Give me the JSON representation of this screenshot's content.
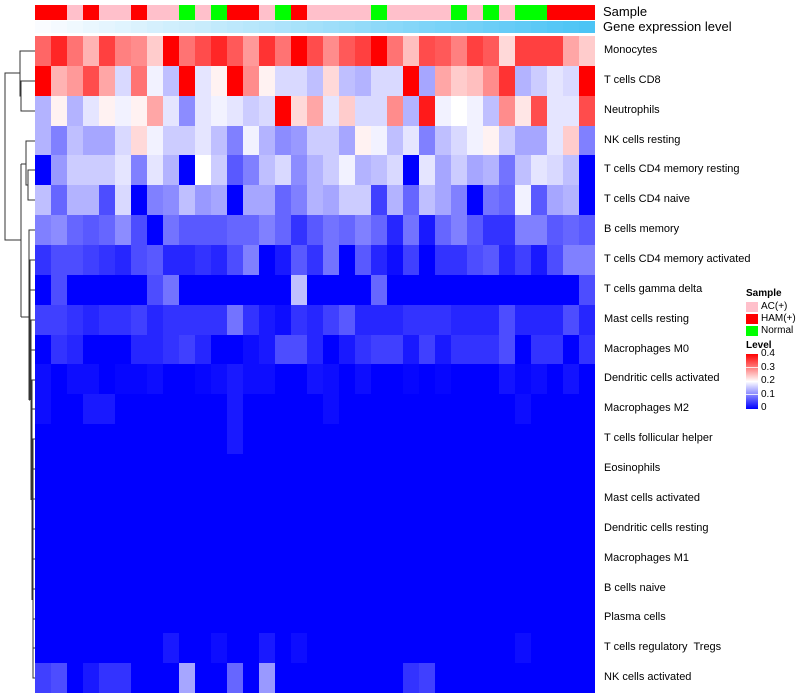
{
  "chart_data": {
    "type": "heatmap",
    "annotation_labels": {
      "sample": "Sample",
      "gene": "Gene expression level"
    },
    "samples": [
      "HAM(+)",
      "HAM(+)",
      "AC(+)",
      "HAM(+)",
      "AC(+)",
      "AC(+)",
      "HAM(+)",
      "AC(+)",
      "AC(+)",
      "Normal",
      "AC(+)",
      "Normal",
      "HAM(+)",
      "HAM(+)",
      "AC(+)",
      "Normal",
      "HAM(+)",
      "AC(+)",
      "AC(+)",
      "AC(+)",
      "AC(+)",
      "Normal",
      "AC(+)",
      "AC(+)",
      "AC(+)",
      "AC(+)",
      "Normal",
      "AC(+)",
      "Normal",
      "AC(+)",
      "Normal",
      "Normal",
      "HAM(+)",
      "HAM(+)",
      "HAM(+)"
    ],
    "gene_expression_level": [
      0.0,
      0.03,
      0.06,
      0.09,
      0.12,
      0.15,
      0.18,
      0.21,
      0.24,
      0.26,
      0.29,
      0.32,
      0.35,
      0.38,
      0.41,
      0.44,
      0.47,
      0.5,
      0.53,
      0.56,
      0.59,
      0.62,
      0.65,
      0.68,
      0.71,
      0.74,
      0.76,
      0.79,
      0.82,
      0.85,
      0.88,
      0.91,
      0.94,
      0.97,
      1.0
    ],
    "rows": [
      "Monocytes",
      "T cells CD8",
      "Neutrophils",
      "NK cells resting",
      "T cells CD4 memory resting",
      "T cells CD4 naive",
      "B cells memory",
      "T cells CD4 memory activated",
      "T cells gamma delta",
      "Mast cells resting",
      "Macrophages M0",
      "Dendritic cells activated",
      "Macrophages M2",
      "T cells follicular helper",
      "Eosinophils",
      "Mast cells activated",
      "Dendritic cells resting",
      "Macrophages M1",
      "B cells naive",
      "Plasma cells",
      "T cells regulatory  Tregs",
      "NK cells activated"
    ],
    "values": [
      [
        0.32,
        0.37,
        0.31,
        0.26,
        0.35,
        0.3,
        0.29,
        0.24,
        0.4,
        0.31,
        0.34,
        0.37,
        0.33,
        0.28,
        0.36,
        0.31,
        0.4,
        0.34,
        0.29,
        0.33,
        0.35,
        0.4,
        0.31,
        0.25,
        0.34,
        0.33,
        0.3,
        0.35,
        0.33,
        0.23,
        0.35,
        0.35,
        0.35,
        0.27,
        0.24
      ],
      [
        0.4,
        0.26,
        0.28,
        0.34,
        0.27,
        0.17,
        0.31,
        0.19,
        0.15,
        0.4,
        0.18,
        0.21,
        0.4,
        0.29,
        0.21,
        0.17,
        0.17,
        0.15,
        0.23,
        0.15,
        0.14,
        0.17,
        0.17,
        0.4,
        0.13,
        0.27,
        0.24,
        0.25,
        0.29,
        0.36,
        0.14,
        0.16,
        0.18,
        0.17,
        0.4
      ],
      [
        0.14,
        0.21,
        0.14,
        0.18,
        0.21,
        0.19,
        0.21,
        0.27,
        0.18,
        0.11,
        0.18,
        0.19,
        0.18,
        0.16,
        0.17,
        0.4,
        0.23,
        0.27,
        0.18,
        0.24,
        0.17,
        0.17,
        0.29,
        0.14,
        0.38,
        0.19,
        0.2,
        0.19,
        0.15,
        0.29,
        0.22,
        0.34,
        0.18,
        0.18,
        0.34
      ],
      [
        0.14,
        0.1,
        0.15,
        0.13,
        0.13,
        0.17,
        0.23,
        0.19,
        0.16,
        0.16,
        0.18,
        0.15,
        0.1,
        0.19,
        0.14,
        0.11,
        0.12,
        0.16,
        0.16,
        0.13,
        0.21,
        0.19,
        0.15,
        0.18,
        0.1,
        0.15,
        0.17,
        0.19,
        0.21,
        0.16,
        0.13,
        0.13,
        0.18,
        0.24,
        0.1
      ],
      [
        0.0,
        0.12,
        0.16,
        0.16,
        0.16,
        0.18,
        0.1,
        0.18,
        0.14,
        0.0,
        0.2,
        0.16,
        0.07,
        0.1,
        0.15,
        0.17,
        0.11,
        0.14,
        0.16,
        0.19,
        0.14,
        0.15,
        0.17,
        0.0,
        0.18,
        0.13,
        0.16,
        0.13,
        0.14,
        0.09,
        0.15,
        0.18,
        0.17,
        0.15,
        0.0
      ],
      [
        0.15,
        0.08,
        0.14,
        0.14,
        0.06,
        0.17,
        0.0,
        0.1,
        0.11,
        0.15,
        0.12,
        0.13,
        0.0,
        0.13,
        0.13,
        0.08,
        0.1,
        0.14,
        0.13,
        0.16,
        0.16,
        0.05,
        0.14,
        0.08,
        0.15,
        0.13,
        0.1,
        0.0,
        0.09,
        0.08,
        0.19,
        0.07,
        0.13,
        0.14,
        0.0
      ],
      [
        0.1,
        0.11,
        0.08,
        0.07,
        0.08,
        0.11,
        0.06,
        0.0,
        0.09,
        0.07,
        0.07,
        0.07,
        0.08,
        0.08,
        0.1,
        0.08,
        0.04,
        0.07,
        0.09,
        0.08,
        0.1,
        0.08,
        0.03,
        0.09,
        0.02,
        0.08,
        0.1,
        0.07,
        0.04,
        0.04,
        0.1,
        0.1,
        0.07,
        0.08,
        0.07
      ],
      [
        0.04,
        0.06,
        0.06,
        0.05,
        0.04,
        0.03,
        0.06,
        0.07,
        0.03,
        0.03,
        0.04,
        0.03,
        0.06,
        0.1,
        0.0,
        0.02,
        0.07,
        0.04,
        0.09,
        0.0,
        0.07,
        0.03,
        0.01,
        0.05,
        0.0,
        0.04,
        0.04,
        0.06,
        0.07,
        0.03,
        0.05,
        0.02,
        0.06,
        0.1,
        0.1
      ],
      [
        0.0,
        0.06,
        0.0,
        0.0,
        0.0,
        0.0,
        0.0,
        0.06,
        0.09,
        0.0,
        0.0,
        0.0,
        0.0,
        0.0,
        0.0,
        0.0,
        0.15,
        0.0,
        0.0,
        0.0,
        0.0,
        0.08,
        0.0,
        0.0,
        0.0,
        0.0,
        0.0,
        0.0,
        0.0,
        0.0,
        0.0,
        0.0,
        0.0,
        0.0,
        0.06
      ],
      [
        0.05,
        0.05,
        0.04,
        0.03,
        0.04,
        0.04,
        0.05,
        0.03,
        0.04,
        0.04,
        0.04,
        0.04,
        0.09,
        0.04,
        0.02,
        0.01,
        0.04,
        0.03,
        0.05,
        0.07,
        0.03,
        0.03,
        0.03,
        0.04,
        0.04,
        0.04,
        0.03,
        0.03,
        0.03,
        0.06,
        0.03,
        0.03,
        0.03,
        0.06,
        0.03
      ],
      [
        0.0,
        0.04,
        0.03,
        0.0,
        0.0,
        0.0,
        0.03,
        0.03,
        0.04,
        0.05,
        0.03,
        0.0,
        0.0,
        0.01,
        0.02,
        0.06,
        0.06,
        0.03,
        0.0,
        0.02,
        0.04,
        0.05,
        0.05,
        0.02,
        0.05,
        0.02,
        0.04,
        0.04,
        0.04,
        0.06,
        0.0,
        0.04,
        0.04,
        0.0,
        0.04
      ],
      [
        0.01,
        0.0,
        0.01,
        0.01,
        0.0,
        0.005,
        0.005,
        0.01,
        0.0,
        0.0,
        0.005,
        0.01,
        0.02,
        0.01,
        0.01,
        0.0,
        0.0,
        0.015,
        0.01,
        0.0,
        0.01,
        0.0,
        0.0,
        0.005,
        0.0,
        0.005,
        0.0,
        0.0,
        0.0,
        0.015,
        0.005,
        0.01,
        0.0,
        0.015,
        0.0
      ],
      [
        0.01,
        0.0,
        0.0,
        0.02,
        0.02,
        0.0,
        0.0,
        0.0,
        0.0,
        0.0,
        0.0,
        0.0,
        0.02,
        0.0,
        0.0,
        0.0,
        0.0,
        0.0,
        0.01,
        0.0,
        0.0,
        0.0,
        0.0,
        0.0,
        0.0,
        0.0,
        0.0,
        0.0,
        0.0,
        0.0,
        0.01,
        0.0,
        0.0,
        0.0,
        0.0
      ],
      [
        0,
        0,
        0,
        0,
        0,
        0,
        0,
        0,
        0,
        0,
        0,
        0,
        0.02,
        0,
        0,
        0,
        0,
        0,
        0,
        0,
        0,
        0,
        0,
        0,
        0,
        0,
        0,
        0,
        0,
        0,
        0,
        0,
        0,
        0,
        0
      ],
      [
        0,
        0,
        0,
        0,
        0,
        0,
        0,
        0,
        0,
        0,
        0,
        0,
        0,
        0,
        0,
        0,
        0,
        0,
        0,
        0,
        0,
        0,
        0,
        0,
        0,
        0,
        0,
        0,
        0,
        0,
        0,
        0,
        0,
        0,
        0
      ],
      [
        0,
        0,
        0,
        0,
        0,
        0,
        0,
        0,
        0,
        0,
        0,
        0,
        0,
        0,
        0,
        0,
        0,
        0,
        0,
        0,
        0,
        0,
        0,
        0,
        0,
        0,
        0,
        0,
        0,
        0,
        0,
        0,
        0,
        0,
        0
      ],
      [
        0,
        0,
        0,
        0,
        0,
        0,
        0,
        0,
        0,
        0,
        0,
        0,
        0,
        0,
        0,
        0,
        0,
        0,
        0,
        0,
        0,
        0,
        0,
        0,
        0,
        0,
        0,
        0,
        0,
        0,
        0,
        0,
        0,
        0,
        0
      ],
      [
        0,
        0,
        0,
        0,
        0,
        0,
        0,
        0,
        0,
        0,
        0,
        0,
        0,
        0,
        0,
        0,
        0,
        0,
        0,
        0,
        0,
        0,
        0,
        0,
        0,
        0,
        0,
        0,
        0,
        0,
        0,
        0,
        0,
        0,
        0
      ],
      [
        0,
        0,
        0,
        0,
        0,
        0,
        0,
        0,
        0,
        0,
        0,
        0,
        0,
        0,
        0,
        0,
        0,
        0,
        0,
        0,
        0,
        0,
        0,
        0,
        0,
        0,
        0,
        0,
        0,
        0,
        0,
        0,
        0,
        0,
        0
      ],
      [
        0,
        0,
        0,
        0,
        0,
        0,
        0,
        0,
        0,
        0,
        0,
        0,
        0,
        0,
        0,
        0,
        0,
        0,
        0,
        0,
        0,
        0,
        0,
        0,
        0,
        0,
        0,
        0,
        0,
        0,
        0,
        0,
        0,
        0,
        0
      ],
      [
        0,
        0,
        0,
        0,
        0,
        0,
        0,
        0,
        0.02,
        0,
        0,
        0.01,
        0,
        0,
        0.02,
        0,
        0.01,
        0,
        0,
        0,
        0,
        0,
        0,
        0,
        0,
        0,
        0,
        0,
        0,
        0,
        0.01,
        0,
        0,
        0,
        0
      ],
      [
        0.05,
        0.06,
        0.0,
        0.02,
        0.04,
        0.04,
        0.0,
        0.0,
        0.0,
        0.13,
        0.0,
        0.0,
        0.08,
        0.0,
        0.12,
        0.0,
        0.0,
        0.0,
        0.0,
        0.0,
        0.0,
        0.0,
        0.0,
        0.04,
        0.05,
        0.0,
        0.0,
        0.0,
        0.0,
        0.0,
        0.0,
        0.0,
        0.0,
        0.0,
        0.0
      ]
    ],
    "legend": {
      "sample_title": "Sample",
      "sample_items": [
        {
          "label": "AC(+)",
          "color": "#FFC0CB"
        },
        {
          "label": "HAM(+)",
          "color": "#FF0000"
        },
        {
          "label": "Normal",
          "color": "#00FF00"
        }
      ],
      "level_title": "Level",
      "level_ticks": [
        "0.4",
        "0.3",
        "0.2",
        "0.1",
        "0"
      ],
      "range": [
        0,
        0.4
      ],
      "colors": {
        "low": "#0000FF",
        "mid": "#FFFFFF",
        "high": "#FF0000"
      }
    },
    "gene_colors": {
      "low": "#FAFCFF",
      "high": "#4CC4F5"
    }
  }
}
